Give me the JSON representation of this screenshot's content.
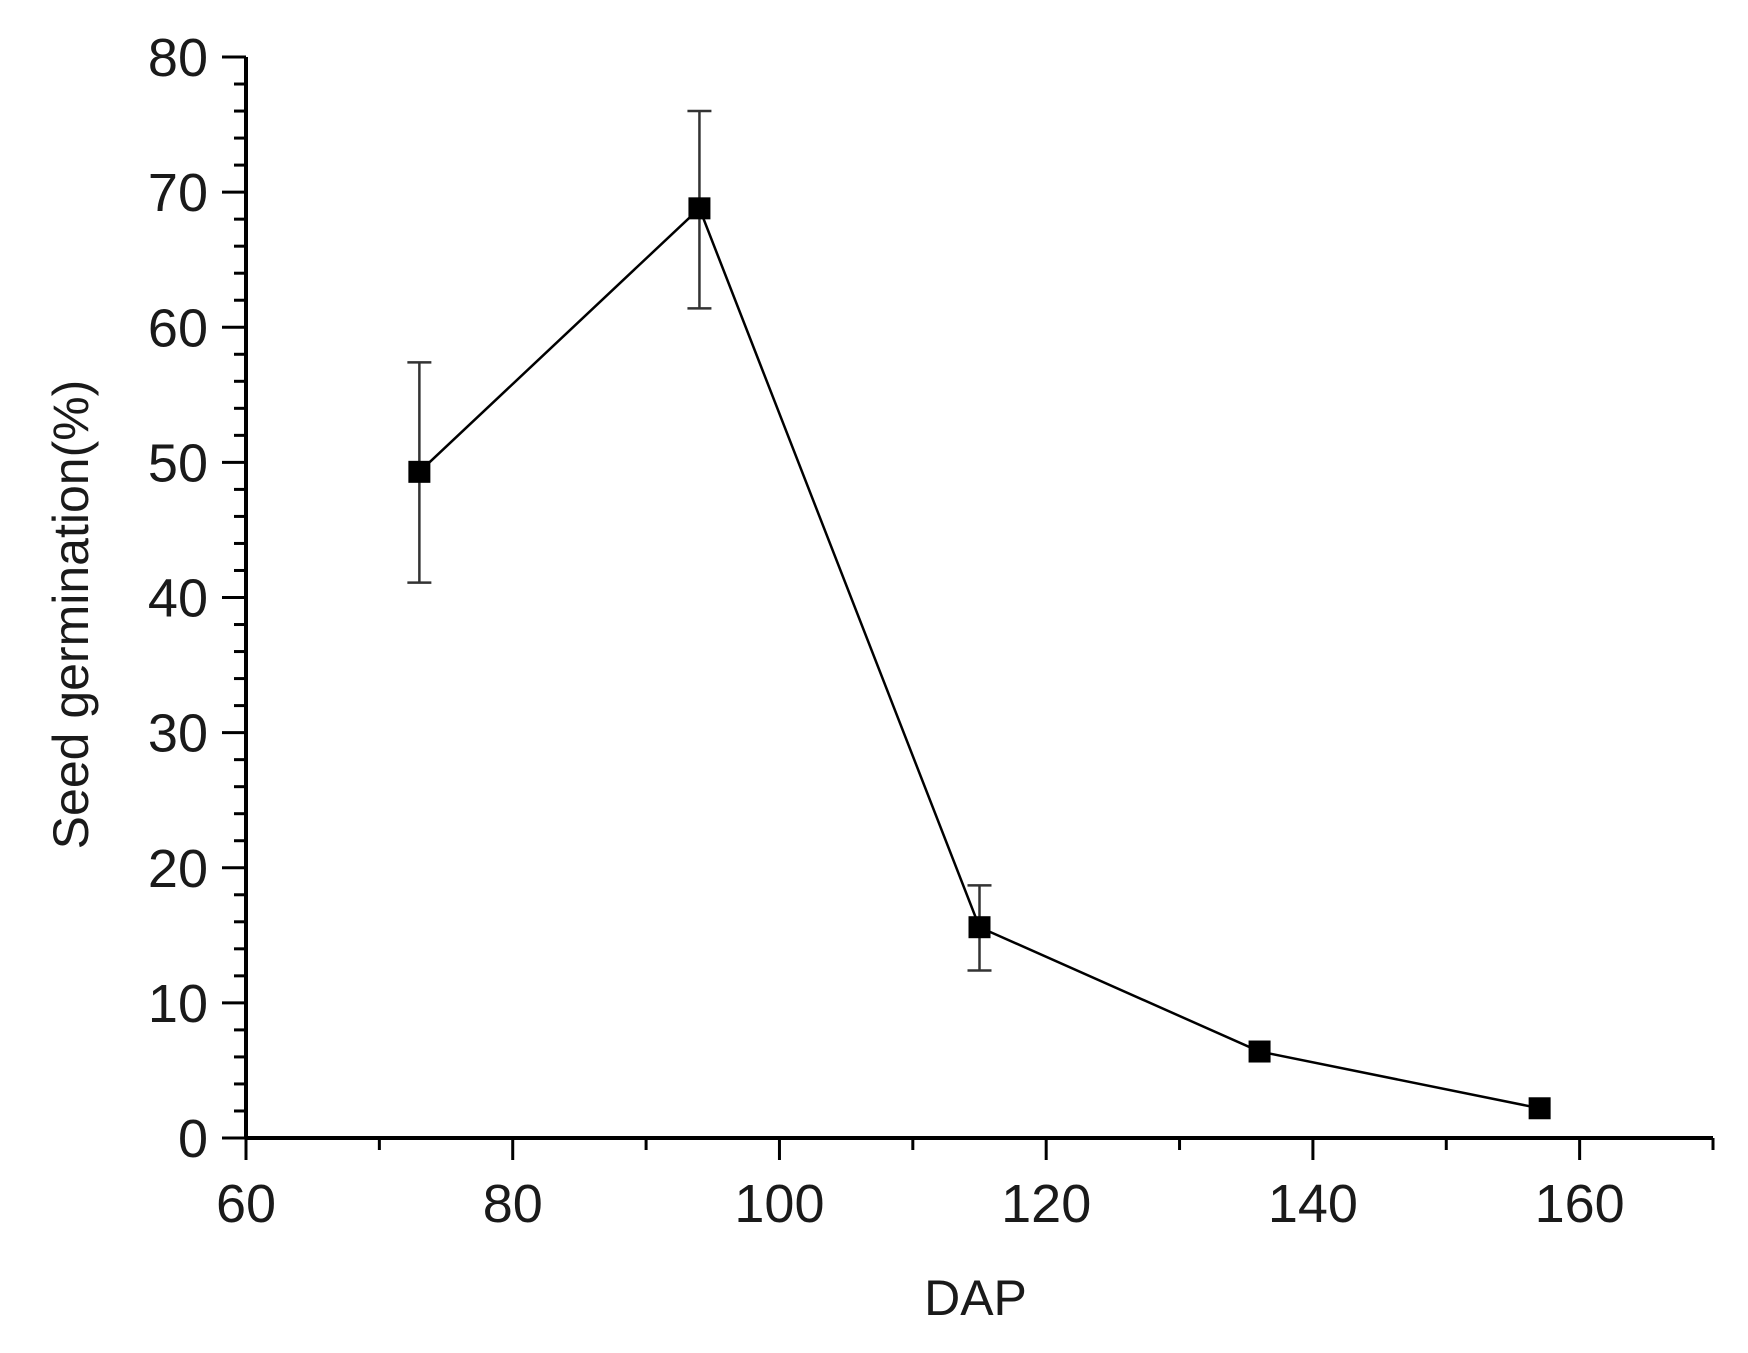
{
  "chart_data": {
    "type": "line",
    "title": "",
    "xlabel": "DAP",
    "ylabel": "Seed germination(%)",
    "xlim": [
      60,
      170
    ],
    "ylim": [
      0,
      80
    ],
    "x_ticks": [
      60,
      80,
      100,
      120,
      140,
      160
    ],
    "y_ticks": [
      0,
      10,
      20,
      30,
      40,
      50,
      60,
      70,
      80
    ],
    "x_minor_step": 10,
    "y_minor_step": 2,
    "grid": false,
    "legend": "none",
    "series": [
      {
        "marker": "square",
        "color": "#000000",
        "points": [
          {
            "x": 73,
            "y": 49.3,
            "err_low": 41.1,
            "err_high": 57.4
          },
          {
            "x": 94,
            "y": 68.8,
            "err_low": 61.4,
            "err_high": 76.0
          },
          {
            "x": 115,
            "y": 15.6,
            "err_low": 12.4,
            "err_high": 18.7
          },
          {
            "x": 136,
            "y": 6.4,
            "err_low": null,
            "err_high": null
          },
          {
            "x": 157,
            "y": 2.2,
            "err_low": null,
            "err_high": null
          }
        ]
      }
    ]
  }
}
